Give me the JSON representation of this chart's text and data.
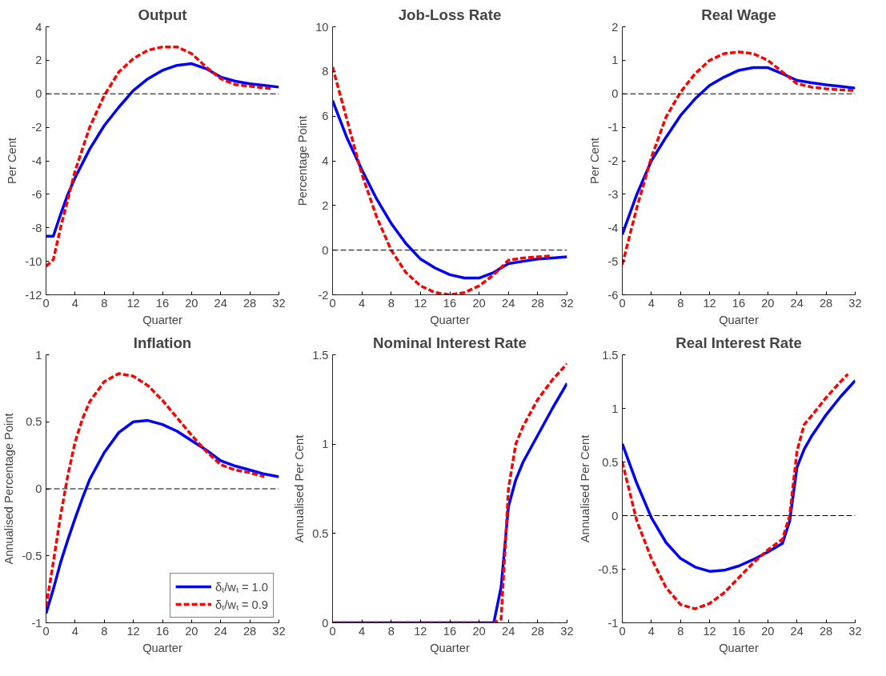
{
  "chart_data": [
    {
      "type": "line",
      "title": "Output",
      "xlabel": "Quarter",
      "ylabel": "Per Cent",
      "xlim": [
        0,
        32
      ],
      "xticks": [
        0,
        4,
        8,
        12,
        16,
        20,
        24,
        28,
        32
      ],
      "ylim": [
        -12,
        4
      ],
      "yticks": [
        -12,
        -10,
        -8,
        -6,
        -4,
        -2,
        0,
        2,
        4
      ],
      "grid": false,
      "legend": false,
      "ref_lines": [
        {
          "axis": "y",
          "value": 0,
          "color": "#000000",
          "line_style": "dashed"
        }
      ],
      "series": [
        {
          "color": "#0000ff",
          "line_style": "solid",
          "x": [
            0,
            1,
            2,
            3,
            4,
            6,
            8,
            10,
            12,
            14,
            16,
            18,
            20,
            22,
            24,
            26,
            28,
            30,
            32
          ],
          "values": [
            -8.5,
            -8.5,
            -7.2,
            -6.0,
            -5.0,
            -3.3,
            -1.9,
            -0.8,
            0.2,
            0.9,
            1.4,
            1.7,
            1.8,
            1.5,
            1.0,
            0.75,
            0.6,
            0.5,
            0.4
          ]
        },
        {
          "color": "#ff0000",
          "line_style": "dashed",
          "x": [
            0,
            1,
            2,
            3,
            4,
            6,
            8,
            10,
            12,
            14,
            16,
            18,
            20,
            22,
            24,
            26,
            28,
            30,
            31
          ],
          "values": [
            -10.3,
            -9.9,
            -8.0,
            -6.3,
            -4.6,
            -2.0,
            -0.1,
            1.3,
            2.1,
            2.6,
            2.8,
            2.8,
            2.4,
            1.6,
            0.9,
            0.55,
            0.45,
            0.35,
            0.3
          ]
        }
      ]
    },
    {
      "type": "line",
      "title": "Job-Loss Rate",
      "xlabel": "Quarter",
      "ylabel": "Percentage Point",
      "xlim": [
        0,
        32
      ],
      "xticks": [
        0,
        4,
        8,
        12,
        16,
        20,
        24,
        28,
        32
      ],
      "ylim": [
        -2,
        10
      ],
      "yticks": [
        -2,
        0,
        2,
        4,
        6,
        8,
        10
      ],
      "grid": false,
      "legend": false,
      "ref_lines": [
        {
          "axis": "y",
          "value": 0,
          "color": "#000000",
          "line_style": "dashed"
        }
      ],
      "series": [
        {
          "color": "#0000ff",
          "line_style": "solid",
          "x": [
            0,
            2,
            4,
            6,
            8,
            10,
            12,
            14,
            16,
            18,
            20,
            22,
            24,
            26,
            28,
            30,
            32
          ],
          "values": [
            6.7,
            5.0,
            3.6,
            2.3,
            1.2,
            0.3,
            -0.4,
            -0.8,
            -1.1,
            -1.25,
            -1.25,
            -1.0,
            -0.6,
            -0.5,
            -0.4,
            -0.35,
            -0.3
          ]
        },
        {
          "color": "#ff0000",
          "line_style": "dashed",
          "x": [
            0,
            2,
            4,
            6,
            8,
            10,
            12,
            14,
            16,
            18,
            20,
            22,
            24,
            26,
            28,
            30
          ],
          "values": [
            8.2,
            5.8,
            3.4,
            1.5,
            0.0,
            -1.0,
            -1.6,
            -1.9,
            -2.0,
            -1.9,
            -1.6,
            -1.1,
            -0.45,
            -0.35,
            -0.3,
            -0.25
          ]
        }
      ]
    },
    {
      "type": "line",
      "title": "Real Wage",
      "xlabel": "Quarter",
      "ylabel": "Per Cent",
      "xlim": [
        0,
        32
      ],
      "xticks": [
        0,
        4,
        8,
        12,
        16,
        20,
        24,
        28,
        32
      ],
      "ylim": [
        -6,
        2
      ],
      "yticks": [
        -6,
        -5,
        -4,
        -3,
        -2,
        -1,
        0,
        1,
        2
      ],
      "grid": false,
      "legend": false,
      "ref_lines": [
        {
          "axis": "y",
          "value": 0,
          "color": "#000000",
          "line_style": "dashed"
        }
      ],
      "series": [
        {
          "color": "#0000ff",
          "line_style": "solid",
          "x": [
            0,
            2,
            4,
            6,
            8,
            10,
            12,
            14,
            16,
            18,
            20,
            22,
            24,
            26,
            28,
            30,
            32
          ],
          "values": [
            -4.2,
            -3.0,
            -2.0,
            -1.3,
            -0.65,
            -0.15,
            0.25,
            0.5,
            0.7,
            0.78,
            0.78,
            0.6,
            0.4,
            0.33,
            0.27,
            0.22,
            0.17
          ]
        },
        {
          "color": "#ff0000",
          "line_style": "dashed",
          "x": [
            0,
            2,
            4,
            6,
            8,
            10,
            12,
            14,
            16,
            18,
            20,
            22,
            24,
            26,
            28,
            30,
            32
          ],
          "values": [
            -5.1,
            -3.4,
            -1.9,
            -0.7,
            0.05,
            0.6,
            1.0,
            1.2,
            1.25,
            1.2,
            1.0,
            0.65,
            0.3,
            0.2,
            0.15,
            0.12,
            0.1
          ]
        }
      ]
    },
    {
      "type": "line",
      "title": "Inflation",
      "xlabel": "Quarter",
      "ylabel": "Annualised Percentage Point",
      "xlim": [
        0,
        32
      ],
      "xticks": [
        0,
        4,
        8,
        12,
        16,
        20,
        24,
        28,
        32
      ],
      "ylim": [
        -1,
        1
      ],
      "yticks": [
        -1,
        -0.5,
        0,
        0.5,
        1
      ],
      "grid": false,
      "legend": "bottom right",
      "ref_lines": [
        {
          "axis": "y",
          "value": 0,
          "color": "#000000",
          "line_style": "dashed"
        }
      ],
      "series": [
        {
          "name": "δₜ/wₜ = 1.0",
          "color": "#0000ff",
          "line_style": "solid",
          "x": [
            0,
            1,
            2,
            3,
            4,
            5,
            6,
            8,
            10,
            12,
            14,
            16,
            18,
            20,
            22,
            24,
            26,
            28,
            30,
            32
          ],
          "values": [
            -0.93,
            -0.75,
            -0.55,
            -0.38,
            -0.22,
            -0.07,
            0.07,
            0.27,
            0.42,
            0.5,
            0.51,
            0.48,
            0.43,
            0.36,
            0.29,
            0.21,
            0.17,
            0.14,
            0.11,
            0.09
          ]
        },
        {
          "name": "δₜ/wₜ = 0.9",
          "color": "#ff0000",
          "line_style": "dashed",
          "x": [
            0,
            1,
            2,
            3,
            4,
            5,
            6,
            8,
            10,
            12,
            14,
            16,
            18,
            20,
            22,
            24,
            26,
            28,
            30
          ],
          "values": [
            -0.88,
            -0.55,
            -0.2,
            0.1,
            0.35,
            0.52,
            0.65,
            0.8,
            0.86,
            0.84,
            0.77,
            0.66,
            0.53,
            0.4,
            0.28,
            0.18,
            0.14,
            0.12,
            0.09
          ]
        }
      ]
    },
    {
      "type": "line",
      "title": "Nominal Interest Rate",
      "xlabel": "Quarter",
      "ylabel": "Annualised Per Cent",
      "xlim": [
        0,
        32
      ],
      "xticks": [
        0,
        4,
        8,
        12,
        16,
        20,
        24,
        28,
        32
      ],
      "ylim": [
        0,
        1.5
      ],
      "yticks": [
        0,
        0.5,
        1,
        1.5
      ],
      "grid": false,
      "legend": false,
      "ref_lines": [
        {
          "axis": "y",
          "value": 0,
          "color": "#000000",
          "line_style": "dashed"
        }
      ],
      "series": [
        {
          "color": "#0000ff",
          "line_style": "solid",
          "x": [
            0,
            22,
            23,
            24,
            25,
            26,
            28,
            30,
            32
          ],
          "values": [
            0,
            0,
            0.2,
            0.65,
            0.8,
            0.9,
            1.05,
            1.2,
            1.34
          ]
        },
        {
          "color": "#ff0000",
          "line_style": "dashed",
          "x": [
            0,
            22,
            23,
            24,
            25,
            26,
            28,
            30,
            32
          ],
          "values": [
            0,
            0,
            0.02,
            0.75,
            1.0,
            1.1,
            1.25,
            1.36,
            1.45
          ]
        }
      ]
    },
    {
      "type": "line",
      "title": "Real Interest Rate",
      "xlabel": "Quarter",
      "ylabel": "Annualised Per Cent",
      "xlim": [
        0,
        32
      ],
      "xticks": [
        0,
        4,
        8,
        12,
        16,
        20,
        24,
        28,
        32
      ],
      "ylim": [
        -1,
        1.5
      ],
      "yticks": [
        -1,
        -0.5,
        0,
        0.5,
        1,
        1.5
      ],
      "grid": false,
      "legend": false,
      "ref_lines": [
        {
          "axis": "y",
          "value": 0,
          "color": "#000000",
          "line_style": "dashed"
        }
      ],
      "series": [
        {
          "color": "#0000ff",
          "line_style": "solid",
          "x": [
            0,
            2,
            4,
            6,
            8,
            10,
            12,
            14,
            16,
            18,
            20,
            22,
            23,
            24,
            25,
            26,
            28,
            30,
            32
          ],
          "values": [
            0.67,
            0.3,
            -0.02,
            -0.25,
            -0.4,
            -0.48,
            -0.52,
            -0.51,
            -0.47,
            -0.41,
            -0.34,
            -0.26,
            -0.05,
            0.45,
            0.62,
            0.74,
            0.94,
            1.11,
            1.26
          ]
        },
        {
          "color": "#ff0000",
          "line_style": "dashed",
          "x": [
            0,
            2,
            4,
            6,
            8,
            10,
            12,
            14,
            16,
            18,
            20,
            22,
            23,
            24,
            25,
            26,
            28,
            30,
            31
          ],
          "values": [
            0.5,
            -0.05,
            -0.4,
            -0.67,
            -0.83,
            -0.87,
            -0.82,
            -0.72,
            -0.58,
            -0.44,
            -0.32,
            -0.22,
            0.0,
            0.6,
            0.85,
            0.93,
            1.1,
            1.25,
            1.32
          ]
        }
      ]
    }
  ]
}
